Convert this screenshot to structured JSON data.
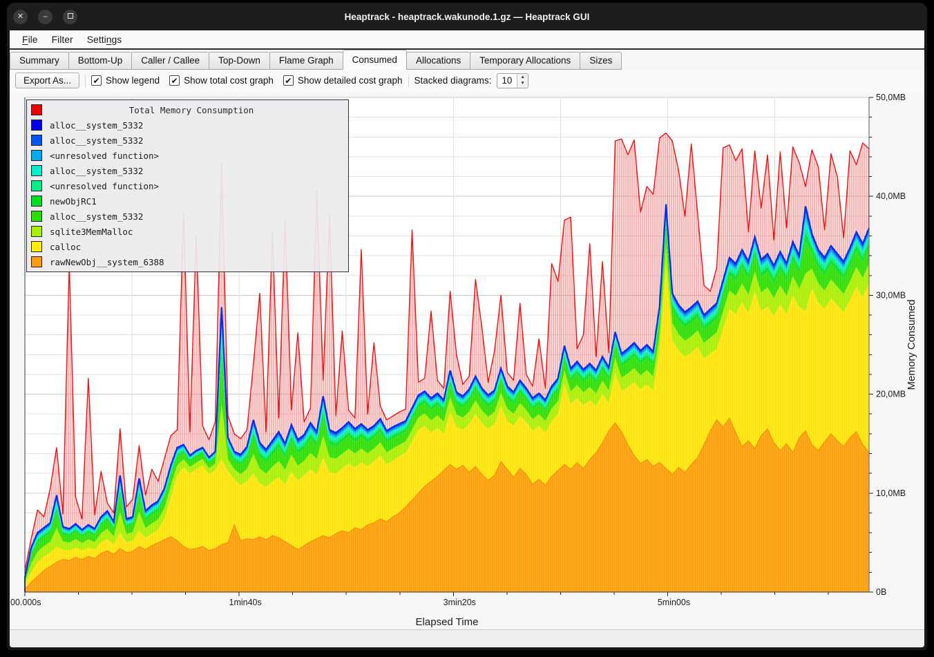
{
  "window": {
    "title": "Heaptrack - heaptrack.wakunode.1.gz — Heaptrack GUI",
    "controls": {
      "close": "✕",
      "minimize": "–",
      "maximize": "□"
    }
  },
  "menu": {
    "items": [
      {
        "label": "File",
        "mnemonic": "F"
      },
      {
        "label": "Filter",
        "mnemonic": ""
      },
      {
        "label": "Settings",
        "mnemonic": "n"
      }
    ]
  },
  "tabs": {
    "active": "Consumed",
    "items": [
      "Summary",
      "Bottom-Up",
      "Caller / Callee",
      "Top-Down",
      "Flame Graph",
      "Consumed",
      "Allocations",
      "Temporary Allocations",
      "Sizes"
    ]
  },
  "toolbar": {
    "export_label": "Export As...",
    "checkboxes": [
      {
        "label": "Show legend",
        "checked": true
      },
      {
        "label": "Show total cost graph",
        "checked": true
      },
      {
        "label": "Show detailed cost graph",
        "checked": true
      }
    ],
    "stacked_label": "Stacked diagrams:",
    "stacked_value": "10",
    "check_glyph": "✔",
    "spin_up": "▲",
    "spin_down": "▼"
  },
  "chart_data": {
    "type": "area",
    "title": "Total Memory Consumption",
    "xlabel": "Elapsed Time",
    "ylabel": "Memory Consumed",
    "x_tick_labels": [
      "00.000s",
      "1min40s",
      "3min20s",
      "5min00s"
    ],
    "x_tick_seconds": [
      0,
      100,
      200,
      300
    ],
    "x_range_seconds": [
      0,
      394
    ],
    "x_grid_step_seconds": 50,
    "x_minor_tick_seconds": 25,
    "ylim": [
      0,
      50
    ],
    "y_tick_labels": [
      "0B",
      "10,0MB",
      "20,0MB",
      "30,0MB",
      "40,0MB",
      "50,0MB"
    ],
    "y_tick_mb": [
      0,
      10,
      20,
      30,
      40,
      50
    ],
    "y_grid_step_mb": 2,
    "grid": true,
    "legend_position": "top-left",
    "legend": {
      "title": "Total Memory Consumption",
      "title_color": "#ee0000",
      "items": [
        {
          "label": "alloc__system_5332",
          "color": "#0000ee"
        },
        {
          "label": "alloc__system_5332",
          "color": "#0055ee"
        },
        {
          "label": "<unresolved function>",
          "color": "#00aaee"
        },
        {
          "label": "alloc__system_5332",
          "color": "#00eecc"
        },
        {
          "label": "<unresolved function>",
          "color": "#00ee88"
        },
        {
          "label": "newObjRC1",
          "color": "#00dd22"
        },
        {
          "label": "alloc__system_5332",
          "color": "#2bdd00"
        },
        {
          "label": "sqlite3MemMalloc",
          "color": "#aaee00"
        },
        {
          "label": "calloc",
          "color": "#ffee00"
        },
        {
          "label": "rawNewObj__system_6388",
          "color": "#ff9a11"
        }
      ]
    },
    "sample_count": 134,
    "series": [
      {
        "id": "orange",
        "name": "rawNewObj__system_6388",
        "color": "#ff9d00",
        "edge_color": "#ef8a00",
        "stack_top_mb": [
          0.3,
          1.0,
          1.6,
          2.2,
          2.6,
          3.0,
          3.3,
          3.2,
          3.5,
          3.3,
          3.6,
          3.4,
          3.9,
          4.2,
          3.8,
          4.4,
          4.0,
          4.1,
          4.6,
          4.3,
          4.7,
          5.0,
          5.3,
          5.6,
          5.2,
          4.6,
          4.3,
          4.4,
          4.6,
          4.2,
          4.4,
          4.8,
          5.0,
          6.8,
          5.2,
          5.4,
          5.3,
          5.6,
          5.3,
          5.7,
          5.5,
          5.1,
          4.7,
          4.3,
          4.7,
          5.1,
          5.4,
          5.7,
          5.5,
          5.9,
          6.2,
          6.0,
          6.5,
          6.3,
          6.8,
          7.0,
          7.4,
          7.1,
          7.6,
          8.0,
          8.6,
          9.3,
          10.0,
          10.7,
          11.2,
          11.7,
          12.3,
          12.9,
          12.4,
          12.8,
          12.1,
          12.7,
          11.9,
          11.3,
          11.8,
          13.2,
          12.4,
          11.6,
          12.5,
          11.9,
          10.9,
          11.4,
          10.8,
          11.7,
          12.3,
          12.9,
          12.4,
          13.1,
          12.5,
          13.4,
          14.1,
          15.1,
          16.3,
          17.1,
          16.2,
          14.9,
          13.8,
          13.0,
          13.4,
          12.7,
          13.1,
          12.5,
          11.9,
          12.6,
          12.1,
          12.9,
          13.6,
          14.9,
          16.3,
          17.4,
          16.7,
          17.6,
          16.1,
          14.7,
          15.3,
          14.5,
          15.8,
          16.5,
          15.1,
          14.3,
          15.0,
          14.1,
          15.6,
          16.3,
          14.9,
          14.3,
          15.2,
          16.0,
          15.3,
          14.7,
          15.6,
          16.2,
          14.9,
          14.1
        ]
      },
      {
        "id": "yellow",
        "name": "calloc",
        "color": "#ffe300",
        "stack_top_mb": [
          0.8,
          2.0,
          3.0,
          3.6,
          4.0,
          4.6,
          4.3,
          4.2,
          4.5,
          4.2,
          4.5,
          4.3,
          5.0,
          5.4,
          4.8,
          6.0,
          5.0,
          5.2,
          6.2,
          5.5,
          5.9,
          6.3,
          7.4,
          9.6,
          11.8,
          12.6,
          12.0,
          12.4,
          12.8,
          11.9,
          12.3,
          13.5,
          12.2,
          11.4,
          10.8,
          11.2,
          12.0,
          11.0,
          10.6,
          11.2,
          11.6,
          10.9,
          12.2,
          11.3,
          11.8,
          12.4,
          11.9,
          13.6,
          12.1,
          12.0,
          12.5,
          13.0,
          12.6,
          13.1,
          12.7,
          13.2,
          13.8,
          12.9,
          13.3,
          13.7,
          14.1,
          15.2,
          16.4,
          16.8,
          16.1,
          16.6,
          16.0,
          18.2,
          16.7,
          16.4,
          17.0,
          18.0,
          17.1,
          16.5,
          17.0,
          18.8,
          17.3,
          16.8,
          17.8,
          17.2,
          16.3,
          16.8,
          16.1,
          17.3,
          18.0,
          21.0,
          19.0,
          19.6,
          18.9,
          19.4,
          18.8,
          20.0,
          19.1,
          22.2,
          20.3,
          20.7,
          21.2,
          20.5,
          21.0,
          20.4,
          24.4,
          33.0,
          25.5,
          24.4,
          23.8,
          24.2,
          24.8,
          23.6,
          24.1,
          24.6,
          26.6,
          28.6,
          28.1,
          29.3,
          28.2,
          30.4,
          28.4,
          28.9,
          27.9,
          29.1,
          28.1,
          30.0,
          28.8,
          28.4,
          30.7,
          29.3,
          28.6,
          29.7,
          29.0,
          28.3,
          29.5,
          30.9,
          29.8,
          31.2
        ]
      },
      {
        "id": "green_blue_group",
        "name": "sqlite3MemMalloc, alloc__system_5332, newObjRC1, <unresolved function>, blues (stacked thin bands up to blue line)",
        "strip_colors": [
          "#aaee00",
          "#2bdd00",
          "#00dd22",
          "#00ee88",
          "#00eecc",
          "#00aaee",
          "#0055ee",
          "#0000ee"
        ],
        "strip_fractions": [
          0.36,
          0.3,
          0.09,
          0.07,
          0.06,
          0.05,
          0.04,
          0.03
        ],
        "line_color": "#0030ee",
        "stack_top_mb": [
          1.5,
          4.5,
          6.0,
          6.5,
          7.0,
          9.8,
          6.6,
          6.4,
          6.9,
          6.3,
          6.8,
          6.4,
          7.6,
          8.2,
          7.1,
          11.8,
          7.4,
          7.6,
          11.5,
          8.2,
          8.8,
          9.2,
          10.5,
          12.8,
          14.6,
          14.9,
          13.8,
          14.3,
          14.6,
          13.6,
          14.2,
          28.8,
          15.6,
          14.2,
          13.9,
          14.7,
          17.4,
          15.1,
          14.4,
          15.3,
          16.2,
          15.0,
          16.9,
          15.4,
          15.9,
          17.1,
          16.2,
          19.8,
          16.4,
          16.1,
          16.6,
          17.2,
          16.5,
          17.0,
          16.4,
          16.8,
          17.5,
          16.3,
          16.7,
          17.0,
          17.3,
          18.6,
          19.9,
          20.3,
          19.6,
          20.1,
          19.4,
          22.4,
          20.2,
          19.8,
          20.5,
          21.8,
          20.6,
          19.9,
          20.4,
          22.6,
          20.8,
          20.2,
          21.4,
          20.6,
          19.6,
          20.1,
          19.4,
          20.8,
          21.6,
          24.9,
          22.6,
          23.3,
          22.5,
          23.1,
          22.4,
          23.8,
          22.7,
          26.3,
          24.1,
          24.6,
          25.2,
          24.4,
          25.0,
          24.3,
          28.9,
          39.2,
          30.2,
          29.0,
          28.3,
          28.8,
          29.4,
          28.0,
          28.6,
          29.2,
          31.5,
          33.8,
          33.2,
          34.6,
          33.4,
          35.9,
          33.6,
          34.2,
          33.0,
          34.4,
          33.2,
          35.4,
          34.0,
          39.0,
          36.2,
          34.6,
          33.8,
          35.0,
          34.2,
          33.4,
          34.8,
          36.4,
          35.2,
          36.8
        ]
      },
      {
        "id": "total",
        "name": "Total Memory Consumption",
        "color": "#ee1111",
        "stack_top_mb": [
          2.2,
          5.4,
          8.3,
          7.6,
          10.5,
          14.6,
          7.9,
          33.2,
          9.6,
          7.4,
          21.6,
          7.8,
          12.2,
          9.0,
          8.0,
          16.5,
          8.6,
          9.4,
          14.8,
          9.8,
          12.4,
          11.2,
          13.5,
          15.8,
          16.4,
          38.4,
          16.2,
          36.0,
          16.8,
          15.4,
          17.2,
          43.4,
          17.8,
          16.0,
          15.5,
          16.4,
          23.0,
          30.2,
          16.2,
          36.4,
          17.6,
          37.6,
          18.4,
          26.2,
          17.2,
          18.6,
          40.6,
          21.4,
          38.2,
          17.8,
          26.4,
          18.4,
          17.6,
          34.6,
          18.0,
          25.2,
          18.8,
          17.4,
          17.8,
          18.2,
          18.5,
          36.6,
          21.2,
          21.6,
          28.4,
          21.4,
          20.6,
          30.4,
          24.0,
          21.0,
          21.8,
          31.6,
          26.8,
          21.2,
          24.4,
          30.0,
          22.2,
          21.4,
          29.2,
          22.0,
          20.8,
          25.6,
          20.6,
          33.2,
          31.4,
          37.6,
          37.9,
          24.6,
          26.0,
          35.2,
          23.8,
          33.4,
          24.2,
          45.6,
          45.8,
          44.2,
          45.7,
          38.4,
          41.0,
          40.2,
          45.9,
          46.4,
          45.6,
          42.6,
          38.0,
          45.3,
          38.2,
          31.0,
          30.4,
          32.8,
          44.9,
          45.2,
          43.6,
          44.8,
          36.4,
          44.6,
          38.8,
          44.2,
          35.6,
          44.5,
          36.8,
          45.0,
          43.4,
          41.0,
          44.7,
          43.0,
          36.6,
          44.3,
          42.0,
          35.8,
          44.6,
          43.2,
          45.4,
          44.8
        ]
      }
    ]
  }
}
